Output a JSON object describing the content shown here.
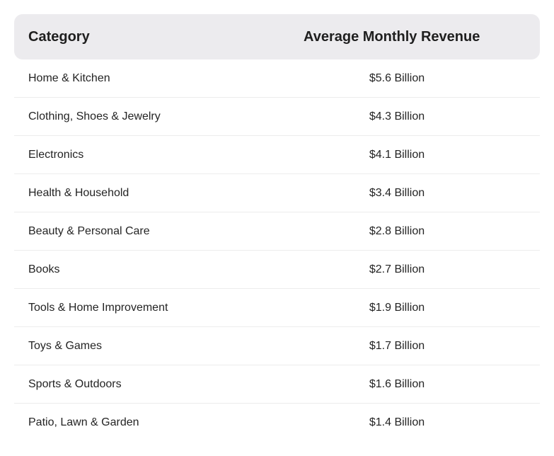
{
  "table": {
    "headers": {
      "category": "Category",
      "revenue": "Average Monthly Revenue"
    },
    "rows": [
      {
        "category": "Home & Kitchen",
        "revenue": "$5.6 Billion"
      },
      {
        "category": "Clothing, Shoes & Jewelry",
        "revenue": "$4.3 Billion"
      },
      {
        "category": "Electronics",
        "revenue": "$4.1 Billion"
      },
      {
        "category": "Health & Household",
        "revenue": "$3.4 Billion"
      },
      {
        "category": "Beauty & Personal Care",
        "revenue": "$2.8 Billion"
      },
      {
        "category": "Books",
        "revenue": "$2.7 Billion"
      },
      {
        "category": "Tools & Home Improvement",
        "revenue": "$1.9 Billion"
      },
      {
        "category": "Toys & Games",
        "revenue": "$1.7 Billion"
      },
      {
        "category": "Sports & Outdoors",
        "revenue": "$1.6 Billion"
      },
      {
        "category": "Patio, Lawn & Garden",
        "revenue": "$1.4 Billion"
      }
    ]
  },
  "colors": {
    "header_bg": "#ecebee",
    "divider": "#ececec",
    "text": "#242424"
  }
}
